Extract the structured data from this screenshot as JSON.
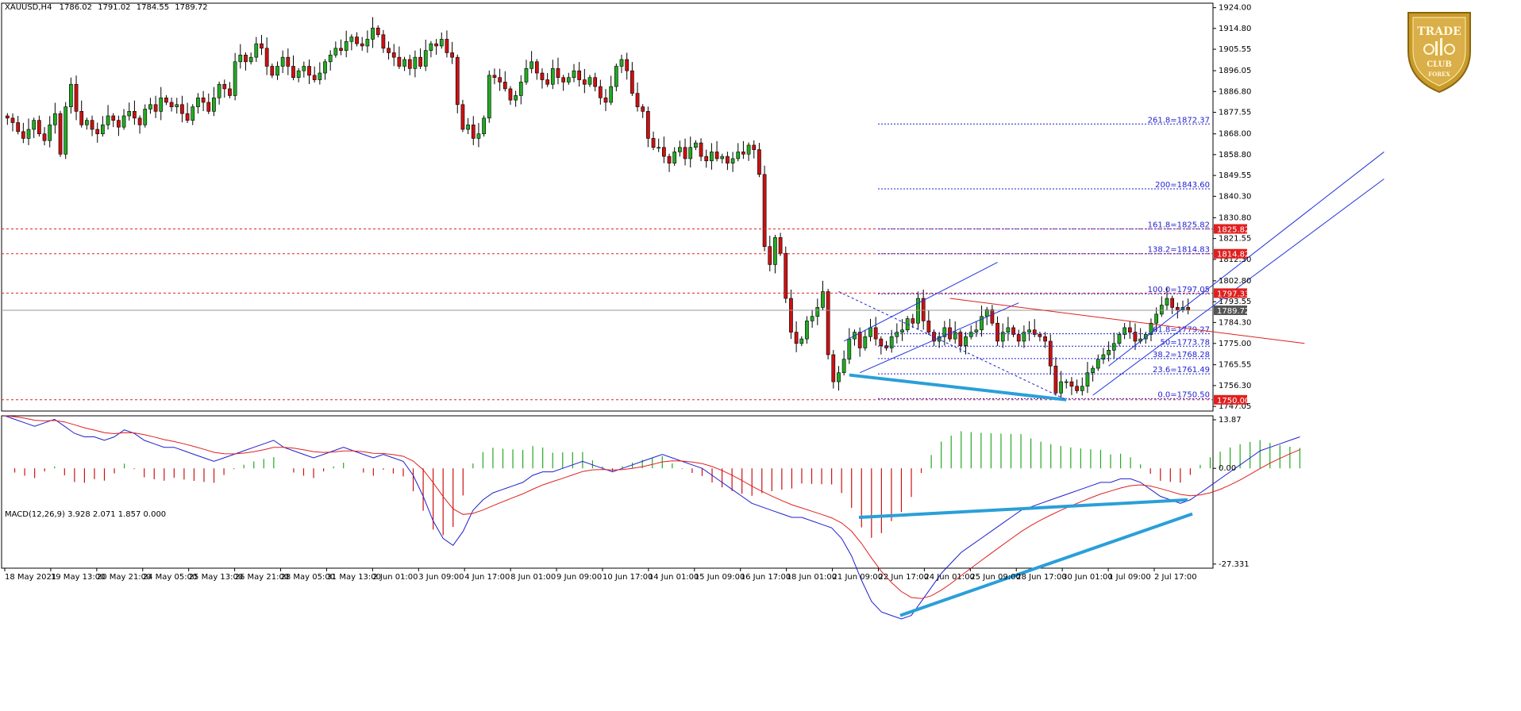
{
  "header": {
    "symbol": "XAUUSD,H4",
    "open": "1786.02",
    "high": "1791.02",
    "low": "1784.55",
    "close": "1789.72"
  },
  "macd_header": "MACD(12,26,9) 3.928 2.071 1.857 0.000",
  "logo": {
    "line1": "TRADE",
    "line2": "CLUB",
    "line3": "FOREX"
  },
  "colors": {
    "bull": "#22aa22",
    "bear": "#cc1111",
    "fib": "#1f1fd0",
    "resistance": "#e02020",
    "trend_light": "#2a9fd8",
    "channel": "#2233dd",
    "macd_line": "#1f1fd0",
    "signal_line": "#e02020",
    "current_price_line": "#999999"
  },
  "price_axis": {
    "ticks": [
      "1924.00",
      "1914.80",
      "1905.55",
      "1896.05",
      "1886.80",
      "1877.55",
      "1868.00",
      "1858.80",
      "1849.55",
      "1840.30",
      "1830.80",
      "1821.55",
      "1812.30",
      "1802.80",
      "1793.55",
      "1784.30",
      "1775.00",
      "1765.55",
      "1756.30",
      "1747.05"
    ],
    "min": 1745.0,
    "max": 1926.0
  },
  "price_tags": [
    {
      "label": "1825.82",
      "value": 1825.82,
      "color": "#e02020"
    },
    {
      "label": "1814.82",
      "value": 1814.82,
      "color": "#e02020"
    },
    {
      "label": "1797.33",
      "value": 1797.33,
      "color": "#e02020"
    },
    {
      "label": "1789.72",
      "value": 1789.72,
      "color": "#555555"
    },
    {
      "label": "1750.00",
      "value": 1750.0,
      "color": "#e02020"
    }
  ],
  "macd_axis": {
    "ticks": [
      "13.87",
      "0.00",
      "-27.331"
    ],
    "min": -28.5,
    "max": 15.0
  },
  "time_axis": [
    "18 May 2021",
    "19 May 13:00",
    "20 May 21:00",
    "24 May 05:00",
    "25 May 13:00",
    "26 May 21:00",
    "28 May 05:00",
    "31 May 13:00",
    "2 Jun 01:00",
    "3 Jun 09:00",
    "4 Jun 17:00",
    "8 Jun 01:00",
    "9 Jun 09:00",
    "10 Jun 17:00",
    "14 Jun 01:00",
    "15 Jun 09:00",
    "16 Jun 17:00",
    "18 Jun 01:00",
    "21 Jun 09:00",
    "22 Jun 17:00",
    "24 Jun 01:00",
    "25 Jun 09:00",
    "28 Jun 17:00",
    "30 Jun 01:00",
    "1 Jul 09:00",
    "2 Jul 17:00"
  ],
  "chart_data": {
    "type": "candlestick",
    "symbol": "XAUUSD",
    "timeframe": "H4",
    "ylim": [
      1745.0,
      1926.0
    ],
    "closes": [
      1875,
      1873,
      1869,
      1866,
      1870,
      1874,
      1868,
      1865,
      1872,
      1877,
      1859,
      1880,
      1890,
      1878,
      1872,
      1874,
      1870,
      1868,
      1872,
      1876,
      1874,
      1871,
      1876,
      1878,
      1875,
      1872,
      1879,
      1881,
      1878,
      1884,
      1882,
      1880,
      1881,
      1877,
      1874,
      1880,
      1884,
      1882,
      1878,
      1884,
      1890,
      1888,
      1885,
      1900,
      1903,
      1900,
      1902,
      1908,
      1906,
      1898,
      1894,
      1898,
      1902,
      1898,
      1893,
      1896,
      1898,
      1894,
      1892,
      1895,
      1900,
      1903,
      1906,
      1905,
      1909,
      1911,
      1908,
      1907,
      1910,
      1915,
      1912,
      1906,
      1904,
      1902,
      1898,
      1901,
      1897,
      1902,
      1898,
      1905,
      1908,
      1907,
      1910,
      1904,
      1902,
      1881,
      1870,
      1872,
      1866,
      1868,
      1875,
      1894,
      1893,
      1891,
      1888,
      1883,
      1885,
      1891,
      1897,
      1900,
      1895,
      1892,
      1890,
      1897,
      1893,
      1891,
      1893,
      1896,
      1892,
      1890,
      1893,
      1889,
      1884,
      1882,
      1889,
      1898,
      1901,
      1896,
      1886,
      1880,
      1878,
      1866,
      1862,
      1862,
      1858,
      1855,
      1860,
      1862,
      1857,
      1862,
      1864,
      1858,
      1856,
      1860,
      1857,
      1858,
      1855,
      1857,
      1860,
      1859,
      1863,
      1861,
      1850,
      1818,
      1810,
      1822,
      1815,
      1795,
      1780,
      1775,
      1777,
      1785,
      1787,
      1791,
      1798,
      1770,
      1758,
      1762,
      1768,
      1777,
      1780,
      1773,
      1778,
      1782,
      1777,
      1774,
      1773,
      1778,
      1780,
      1781,
      1786,
      1784,
      1795,
      1785,
      1780,
      1776,
      1778,
      1782,
      1777,
      1780,
      1774,
      1778,
      1780,
      1781,
      1787,
      1790,
      1784,
      1776,
      1780,
      1782,
      1779,
      1776,
      1780,
      1781,
      1779,
      1778,
      1776,
      1765,
      1753,
      1758,
      1758,
      1756,
      1754,
      1756,
      1762,
      1764,
      1768,
      1770,
      1772,
      1775,
      1779,
      1782,
      1780,
      1776,
      1777,
      1779,
      1784,
      1788,
      1792,
      1795,
      1791,
      1790,
      1791,
      1790
    ],
    "resistance_levels": [
      1825.82,
      1814.82,
      1797.33,
      1750.0
    ],
    "current_price": 1789.72,
    "fibonacci": [
      {
        "label": "261.8=1872.37",
        "value": 1872.37
      },
      {
        "label": "200=1843.60",
        "value": 1843.6
      },
      {
        "label": "161.8=1825.82",
        "value": 1825.82
      },
      {
        "label": "138.2=1814.83",
        "value": 1814.83
      },
      {
        "label": "100.0=1797.05",
        "value": 1797.05
      },
      {
        "label": "61.8=1779.27",
        "value": 1779.27
      },
      {
        "label": "50=1773.78",
        "value": 1773.78
      },
      {
        "label": "38.2=1768.28",
        "value": 1768.28
      },
      {
        "label": "23.6=1761.49",
        "value": 1761.49
      },
      {
        "label": "0.0=1750.50",
        "value": 1750.5
      }
    ],
    "macd": {
      "params": "12,26,9",
      "macd_values": [
        15,
        14,
        13,
        12,
        13,
        14,
        12,
        10,
        9,
        9,
        8,
        9,
        11,
        10,
        8,
        7,
        6,
        6,
        5,
        4,
        3,
        2,
        3,
        4,
        5,
        6,
        7,
        8,
        6,
        5,
        4,
        3,
        4,
        5,
        6,
        5,
        4,
        3,
        4,
        3,
        2,
        -2,
        -8,
        -15,
        -20,
        -22,
        -18,
        -12,
        -9,
        -7,
        -6,
        -5,
        -4,
        -2,
        -1,
        -1,
        0,
        1,
        2,
        1,
        0,
        -1,
        0,
        1,
        2,
        3,
        4,
        3,
        2,
        1,
        0,
        -2,
        -4,
        -6,
        -8,
        -10,
        -11,
        -12,
        -13,
        -14,
        -14,
        -15,
        -16,
        -17,
        -20,
        -25,
        -32,
        -38,
        -41,
        -42,
        -43,
        -42,
        -38,
        -34,
        -30,
        -27,
        -24,
        -22,
        -20,
        -18,
        -16,
        -14,
        -12,
        -11,
        -10,
        -9,
        -8,
        -7,
        -6,
        -5,
        -4,
        -4,
        -3,
        -3,
        -4,
        -6,
        -8,
        -9,
        -10,
        -9,
        -7,
        -5,
        -3,
        -1,
        1,
        3,
        5,
        6,
        7,
        8,
        9
      ]
    }
  }
}
